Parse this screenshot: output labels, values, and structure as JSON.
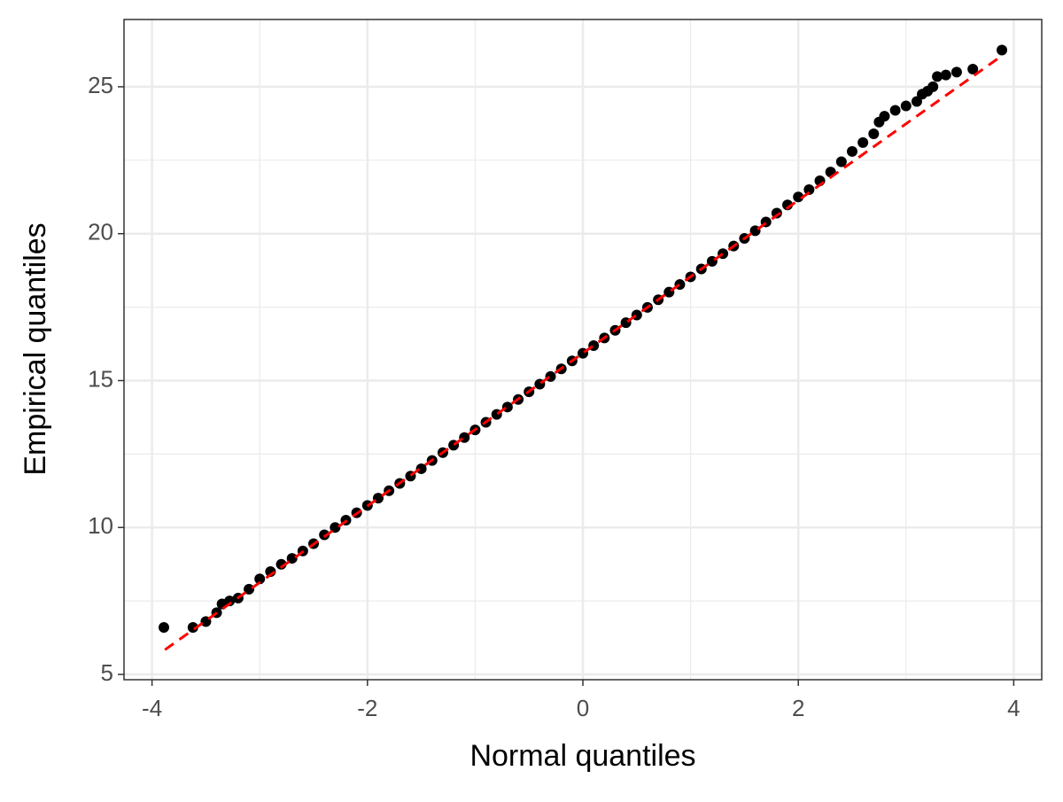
{
  "chart_data": {
    "type": "scatter",
    "xlabel": "Normal quantiles",
    "ylabel": "Empirical quantiles",
    "x": [
      -3.89,
      -3.62,
      -3.5,
      -3.4,
      -3.35,
      -3.28,
      -3.2,
      -3.1,
      -3.0,
      -2.9,
      -2.8,
      -2.7,
      -2.6,
      -2.5,
      -2.4,
      -2.3,
      -2.2,
      -2.1,
      -2.0,
      -1.9,
      -1.8,
      -1.7,
      -1.6,
      -1.5,
      -1.4,
      -1.3,
      -1.2,
      -1.1,
      -1.0,
      -0.9,
      -0.8,
      -0.7,
      -0.6,
      -0.5,
      -0.4,
      -0.3,
      -0.2,
      -0.1,
      0,
      0.1,
      0.2,
      0.3,
      0.4,
      0.5,
      0.6,
      0.7,
      0.8,
      0.9,
      1.0,
      1.1,
      1.2,
      1.3,
      1.4,
      1.5,
      1.6,
      1.7,
      1.8,
      1.9,
      2.0,
      2.1,
      2.2,
      2.3,
      2.4,
      2.5,
      2.6,
      2.7,
      2.75,
      2.8,
      2.9,
      3.0,
      3.1,
      3.15,
      3.2,
      3.25,
      3.29,
      3.37,
      3.47,
      3.62,
      3.89
    ],
    "values": [
      6.6,
      6.6,
      6.8,
      7.1,
      7.4,
      7.5,
      7.6,
      7.9,
      8.25,
      8.5,
      8.75,
      8.95,
      9.2,
      9.45,
      9.75,
      10.0,
      10.25,
      10.5,
      10.75,
      11.0,
      11.25,
      11.5,
      11.75,
      12.0,
      12.28,
      12.55,
      12.8,
      13.06,
      13.32,
      13.58,
      13.85,
      14.1,
      14.36,
      14.62,
      14.88,
      15.14,
      15.4,
      15.67,
      15.93,
      16.19,
      16.45,
      16.71,
      16.97,
      17.23,
      17.49,
      17.75,
      18.01,
      18.27,
      18.53,
      18.8,
      19.06,
      19.32,
      19.58,
      19.84,
      20.1,
      20.4,
      20.7,
      20.98,
      21.25,
      21.5,
      21.8,
      22.1,
      22.45,
      22.8,
      23.1,
      23.4,
      23.8,
      24.0,
      24.2,
      24.35,
      24.5,
      24.75,
      24.85,
      25.0,
      25.35,
      25.4,
      25.5,
      25.6,
      26.25
    ],
    "color": "#000000",
    "reference_line": {
      "x": [
        -3.88,
        3.88
      ],
      "y": [
        5.84,
        26.03
      ],
      "color": "#ff0000",
      "dashed": true
    },
    "xlim": [
      -4.26,
      4.26
    ],
    "ylim": [
      4.82,
      27.29
    ],
    "xticks": [
      -4,
      -2,
      0,
      2,
      4
    ],
    "yticks": [
      5,
      10,
      15,
      20,
      25
    ],
    "x_minor_ticks": [
      -3,
      -1,
      1,
      3
    ],
    "y_minor_ticks": [
      7.5,
      12.5,
      17.5,
      22.5
    ],
    "grid": true
  }
}
